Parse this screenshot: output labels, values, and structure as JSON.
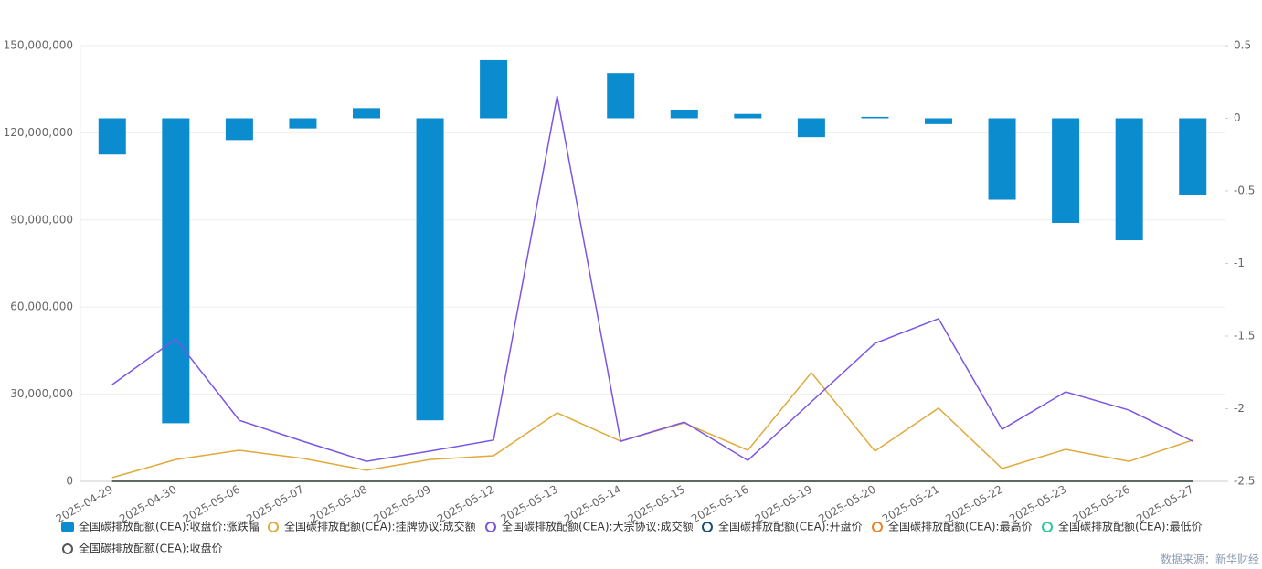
{
  "chart_data": {
    "type": "bar-line",
    "categories": [
      "2025-04-29",
      "2025-04-30",
      "2025-05-06",
      "2025-05-07",
      "2025-05-08",
      "2025-05-09",
      "2025-05-12",
      "2025-05-13",
      "2025-05-14",
      "2025-05-15",
      "2025-05-16",
      "2025-05-19",
      "2025-05-20",
      "2025-05-21",
      "2025-05-22",
      "2025-05-23",
      "2025-05-26",
      "2025-05-27"
    ],
    "ylim": [
      0,
      150000000
    ],
    "yticks": [
      {
        "value": 0,
        "label": "0"
      },
      {
        "value": 30000000,
        "label": "30,000,000"
      },
      {
        "value": 60000000,
        "label": "60,000,000"
      },
      {
        "value": 90000000,
        "label": "90,000,000"
      },
      {
        "value": 120000000,
        "label": "120,000,000"
      },
      {
        "value": 150000000,
        "label": "150,000,000"
      }
    ],
    "y2lim": [
      -2.5,
      0.5
    ],
    "y2ticks": [
      0.5,
      0,
      -0.5,
      -1,
      -1.5,
      -2,
      -2.5
    ],
    "grid": true,
    "series": [
      {
        "name": "全国碳排放配额(CEA):收盘价:涨跌幅",
        "type": "bar",
        "axis": "y2",
        "color": "#0a8ccf",
        "values": [
          -0.25,
          -2.1,
          -0.15,
          -0.07,
          0.07,
          -2.08,
          0.4,
          null,
          0.31,
          0.06,
          0.03,
          -0.13,
          0.01,
          -0.04,
          -0.56,
          -0.72,
          -0.84,
          -0.53
        ]
      },
      {
        "name": "全国碳排放配额(CEA):挂牌协议:成交额",
        "type": "line",
        "color": "#e0a93a",
        "values": [
          1300000,
          7500000,
          10700000,
          7900000,
          3800000,
          7500000,
          8800000,
          23600000,
          13800000,
          20100000,
          10700000,
          37400000,
          10400000,
          25200000,
          4400000,
          11000000,
          6900000,
          14200000
        ]
      },
      {
        "name": "全国碳排放配额(CEA):大宗协议:成交额",
        "type": "line",
        "color": "#7b55e3",
        "values": [
          33300000,
          49000000,
          21000000,
          13800000,
          6900000,
          10400000,
          14200000,
          132700000,
          13800000,
          20400000,
          7200000,
          27400000,
          47500000,
          56000000,
          17900000,
          30800000,
          24500000,
          13800000
        ]
      },
      {
        "name": "全国碳排放配额(CEA):开盘价",
        "type": "line",
        "color": "#1d4e70",
        "values": [
          0,
          0,
          0,
          0,
          0,
          0,
          0,
          0,
          0,
          0,
          0,
          0,
          0,
          0,
          0,
          0,
          0,
          0
        ]
      },
      {
        "name": "全国碳排放配额(CEA):最高价",
        "type": "line",
        "color": "#e8822a",
        "values": [
          0,
          0,
          0,
          0,
          0,
          0,
          0,
          0,
          0,
          0,
          0,
          0,
          0,
          0,
          0,
          0,
          0,
          0
        ]
      },
      {
        "name": "全国碳排放配额(CEA):最低价",
        "type": "line",
        "color": "#2ec4a0",
        "values": [
          0,
          0,
          0,
          0,
          0,
          0,
          0,
          0,
          0,
          0,
          0,
          0,
          0,
          0,
          0,
          0,
          0,
          0
        ]
      },
      {
        "name": "全国碳排放配额(CEA):收盘价",
        "type": "line",
        "color": "#555555",
        "values": [
          0,
          0,
          0,
          0,
          0,
          0,
          0,
          0,
          0,
          0,
          0,
          0,
          0,
          0,
          0,
          0,
          0,
          0
        ]
      }
    ],
    "source": "数据来源：新华财经"
  }
}
